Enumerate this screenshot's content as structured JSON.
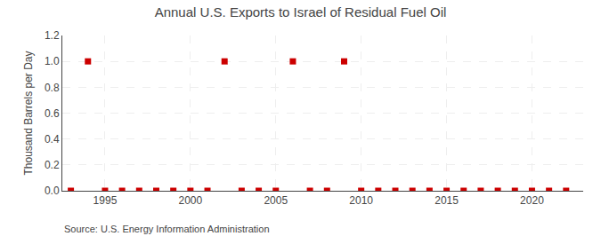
{
  "chart_data": {
    "type": "scatter",
    "title": "Annual U.S. Exports to Israel of Residual Fuel Oil",
    "ylabel": "Thousand Barrels per Day",
    "annotations": [
      "Source: U.S. Energy Information Administration"
    ],
    "x": [
      1993,
      1994,
      1995,
      1996,
      1997,
      1998,
      1999,
      2000,
      2001,
      2002,
      2003,
      2004,
      2005,
      2006,
      2007,
      2008,
      2009,
      2010,
      2011,
      2012,
      2013,
      2014,
      2015,
      2016,
      2017,
      2018,
      2019,
      2020,
      2021,
      2022
    ],
    "values": [
      0.0,
      1.0,
      0.0,
      0.0,
      0.0,
      0.0,
      0.0,
      0.0,
      0.0,
      1.0,
      0.0,
      0.0,
      0.0,
      1.0,
      0.0,
      0.0,
      1.0,
      0.0,
      0.0,
      0.0,
      0.0,
      0.0,
      0.0,
      0.0,
      0.0,
      0.0,
      0.0,
      0.0,
      0.0,
      0.0
    ],
    "color": "#cc0000",
    "marker": "square",
    "xlim": [
      1992.5,
      2023
    ],
    "xticks": [
      1995,
      2000,
      2005,
      2010,
      2015,
      2020
    ],
    "ylim": [
      0,
      1.2
    ],
    "yticks": [
      {
        "value": 0,
        "label": "0.0"
      },
      0.2,
      0.4,
      0.6,
      0.8,
      {
        "value": 1,
        "label": "1.0"
      },
      1.2
    ],
    "grid": true
  }
}
